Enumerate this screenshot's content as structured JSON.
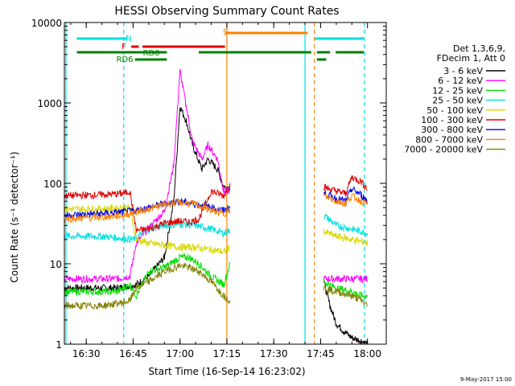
{
  "colors": {
    "background": "#ffffff",
    "axis": "#000000",
    "e3_6": "#000000",
    "e6_12": "#ff00ff",
    "e12_25": "#00e000",
    "e25_50": "#00e0e0",
    "e50_100": "#d8d800",
    "e100_300": "#e00000",
    "e300_800": "#0000e0",
    "e800_7000": "#ff8000",
    "e7000_20000": "#808000",
    "flag_green": "#008000"
  },
  "chart_data": {
    "type": "line",
    "title": "HESSI Observing Summary Count Rates",
    "xlabel": "Start Time (16-Sep-14 16:23:02)",
    "ylabel": "Count Rate (s⁻¹ detector⁻¹)",
    "yscale": "log",
    "ylim": [
      1,
      10000
    ],
    "xlim_minutes_after_1623": [
      0,
      103
    ],
    "x_ticks": [
      "16:30",
      "16:45",
      "17:00",
      "17:15",
      "17:30",
      "17:45",
      "18:00"
    ],
    "y_ticks": [
      "1",
      "10",
      "100",
      "1000",
      "10000"
    ],
    "legend_header": [
      "Det 1,3,6,9,",
      "FDecim 1, Att 0"
    ],
    "legend_position": "right",
    "footer_date": "9-May-2017 15:00",
    "flags": [
      {
        "label": "N",
        "color": "#00e0e0",
        "segments": [
          [
            16.45,
            16.72
          ],
          [
            17.72,
            17.98
          ]
        ]
      },
      {
        "label": "S",
        "color": "#ff8000",
        "segments": [
          [
            17.24,
            17.68
          ]
        ]
      },
      {
        "label": "F",
        "color": "#e00000",
        "segments": [
          [
            16.74,
            16.78
          ],
          [
            16.8,
            17.24
          ]
        ]
      },
      {
        "label": "RD0",
        "color": "#008000",
        "segments": [
          [
            16.45,
            16.93
          ],
          [
            17.1,
            17.7
          ],
          [
            17.73,
            17.8
          ],
          [
            17.83,
            17.98
          ]
        ]
      },
      {
        "label": "RD6",
        "color": "#008000",
        "segments": [
          [
            16.76,
            16.93
          ],
          [
            17.73,
            17.78
          ]
        ]
      }
    ],
    "series": [
      {
        "name": "3 - 6 keV",
        "color": "#000000",
        "x": [
          "16:23",
          "16:40",
          "16:44",
          "16:46",
          "16:50",
          "16:55",
          "16:58",
          "17:00",
          "17:02",
          "17:04",
          "17:07",
          "17:09",
          "17:12",
          "17:14",
          "17:16",
          "17:46",
          "17:48",
          "17:50",
          "17:52",
          "17:55",
          "17:58",
          "18:00"
        ],
        "y": [
          5,
          5,
          5.3,
          5.5,
          7,
          12,
          60,
          900,
          600,
          300,
          150,
          200,
          150,
          90,
          90,
          6,
          3,
          1.8,
          1.5,
          1.2,
          1.1,
          1
        ]
      },
      {
        "name": "6 - 12 keV",
        "color": "#ff00ff",
        "x": [
          "16:23",
          "16:40",
          "16:44",
          "16:46",
          "16:50",
          "16:55",
          "16:58",
          "17:00",
          "17:02",
          "17:04",
          "17:07",
          "17:09",
          "17:12",
          "17:14",
          "17:16",
          "17:46",
          "17:50",
          "17:55",
          "17:58",
          "18:00"
        ],
        "y": [
          6.5,
          6.5,
          7,
          18,
          28,
          45,
          170,
          2500,
          900,
          330,
          200,
          300,
          200,
          80,
          80,
          6.5,
          6.5,
          6.5,
          6.5,
          6.5
        ]
      },
      {
        "name": "12 - 25 keV",
        "color": "#00e000",
        "x": [
          "16:23",
          "16:40",
          "16:44",
          "16:46",
          "16:50",
          "16:55",
          "17:00",
          "17:03",
          "17:06",
          "17:10",
          "17:14",
          "17:16",
          "17:46",
          "17:50",
          "17:55",
          "17:58",
          "18:00"
        ],
        "y": [
          4.5,
          4.5,
          5.5,
          4,
          8,
          9,
          12,
          12,
          10,
          7,
          5.5,
          10,
          6,
          5,
          4.5,
          4,
          4
        ]
      },
      {
        "name": "25 - 50 keV",
        "color": "#00e0e0",
        "x": [
          "16:23",
          "16:35",
          "16:40",
          "16:45",
          "16:50",
          "16:55",
          "17:00",
          "17:05",
          "17:10",
          "17:14",
          "17:16",
          "17:46",
          "17:48",
          "17:50",
          "17:55",
          "17:58",
          "18:00"
        ],
        "y": [
          22,
          22,
          21,
          20,
          27,
          30,
          31,
          30,
          27,
          24,
          26,
          40,
          35,
          30,
          27,
          25,
          24
        ]
      },
      {
        "name": "50 - 100 keV",
        "color": "#d8d800",
        "x": [
          "16:23",
          "16:35",
          "16:42",
          "16:44",
          "16:46",
          "16:50",
          "16:55",
          "17:00",
          "17:05",
          "17:10",
          "17:14",
          "17:16",
          "17:46",
          "17:50",
          "17:55",
          "17:58",
          "18:00"
        ],
        "y": [
          48,
          48,
          50,
          50,
          20,
          18,
          17,
          16,
          16,
          15,
          14,
          16,
          25,
          22,
          20,
          19,
          18
        ]
      },
      {
        "name": "100 - 300 keV",
        "color": "#e00000",
        "x": [
          "16:23",
          "16:35",
          "16:42",
          "16:44",
          "16:46",
          "16:50",
          "16:55",
          "17:00",
          "17:03",
          "17:06",
          "17:10",
          "17:14",
          "17:16",
          "17:46",
          "17:50",
          "17:53",
          "17:55",
          "17:58",
          "18:00"
        ],
        "y": [
          70,
          72,
          75,
          80,
          26,
          27,
          32,
          34,
          33,
          36,
          80,
          70,
          95,
          90,
          80,
          75,
          120,
          105,
          85
        ]
      },
      {
        "name": "300 - 800 keV",
        "color": "#0000e0",
        "x": [
          "16:23",
          "16:35",
          "16:42",
          "16:44",
          "16:46",
          "16:50",
          "16:55",
          "17:00",
          "17:05",
          "17:10",
          "17:14",
          "17:16",
          "17:46",
          "17:50",
          "17:53",
          "17:55",
          "17:58",
          "18:00"
        ],
        "y": [
          40,
          42,
          44,
          45,
          46,
          50,
          56,
          60,
          55,
          50,
          46,
          50,
          75,
          65,
          60,
          85,
          72,
          60
        ]
      },
      {
        "name": "800 - 7000 keV",
        "color": "#ff8000",
        "x": [
          "16:23",
          "16:35",
          "16:42",
          "16:44",
          "16:46",
          "16:50",
          "16:55",
          "17:00",
          "17:05",
          "17:10",
          "17:14",
          "17:16",
          "17:46",
          "17:50",
          "17:53",
          "17:55",
          "17:58",
          "18:00"
        ],
        "y": [
          36,
          38,
          40,
          42,
          44,
          48,
          55,
          58,
          55,
          46,
          42,
          46,
          70,
          60,
          56,
          70,
          60,
          55
        ]
      },
      {
        "name": "7000 - 20000 keV",
        "color": "#808000",
        "x": [
          "16:23",
          "16:35",
          "16:42",
          "16:44",
          "16:46",
          "16:50",
          "16:55",
          "17:00",
          "17:03",
          "17:06",
          "17:10",
          "17:14",
          "17:16",
          "17:46",
          "17:50",
          "17:55",
          "17:58",
          "18:00"
        ],
        "y": [
          3,
          3,
          3.3,
          3.5,
          5,
          6,
          8,
          9.5,
          9,
          8,
          6,
          4,
          3.5,
          5,
          4.5,
          4,
          3.5,
          3
        ]
      }
    ],
    "vertical_lines": [
      {
        "time": "16:23:30",
        "color": "#00e0e0",
        "style": "solid"
      },
      {
        "time": "16:42",
        "color": "#00e0e0",
        "style": "dashed"
      },
      {
        "time": "17:15",
        "color": "#ff8000",
        "style": "solid"
      },
      {
        "time": "17:40",
        "color": "#00e0e0",
        "style": "solid"
      },
      {
        "time": "17:43",
        "color": "#ff8000",
        "style": "dashed"
      },
      {
        "time": "17:59",
        "color": "#00e0e0",
        "style": "dashed"
      }
    ]
  }
}
